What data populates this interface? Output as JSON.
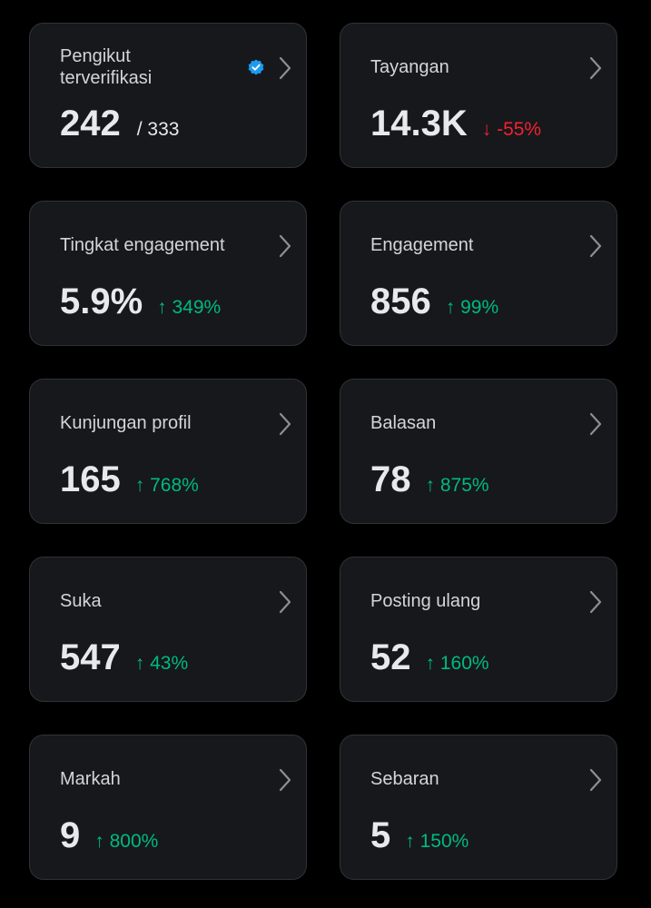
{
  "cards": [
    {
      "label": "Pengikut terverifikasi",
      "value": "242",
      "extra": "/ 333"
    },
    {
      "label": "Tayangan",
      "value": "14.3K",
      "change": "↓ -55%",
      "change_color": "#f4212e"
    },
    {
      "label": "Tingkat engagement",
      "value": "5.9%",
      "change": "↑ 349%",
      "change_color": "#00ba7c"
    },
    {
      "label": "Engagement",
      "value": "856",
      "change": "↑ 99%",
      "change_color": "#00ba7c"
    },
    {
      "label": "Kunjungan profil",
      "value": "165",
      "change": "↑ 768%",
      "change_color": "#00ba7c"
    },
    {
      "label": "Balasan",
      "value": "78",
      "change": "↑ 875%",
      "change_color": "#00ba7c"
    },
    {
      "label": "Suka",
      "value": "547",
      "change": "↑ 43%",
      "change_color": "#00ba7c"
    },
    {
      "label": "Posting ulang",
      "value": "52",
      "change": "↑ 160%",
      "change_color": "#00ba7c"
    },
    {
      "label": "Markah",
      "value": "9",
      "change": "↑ 800%",
      "change_color": "#00ba7c"
    },
    {
      "label": "Sebaran",
      "value": "5",
      "change": "↑ 150%",
      "change_color": "#00ba7c"
    }
  ]
}
